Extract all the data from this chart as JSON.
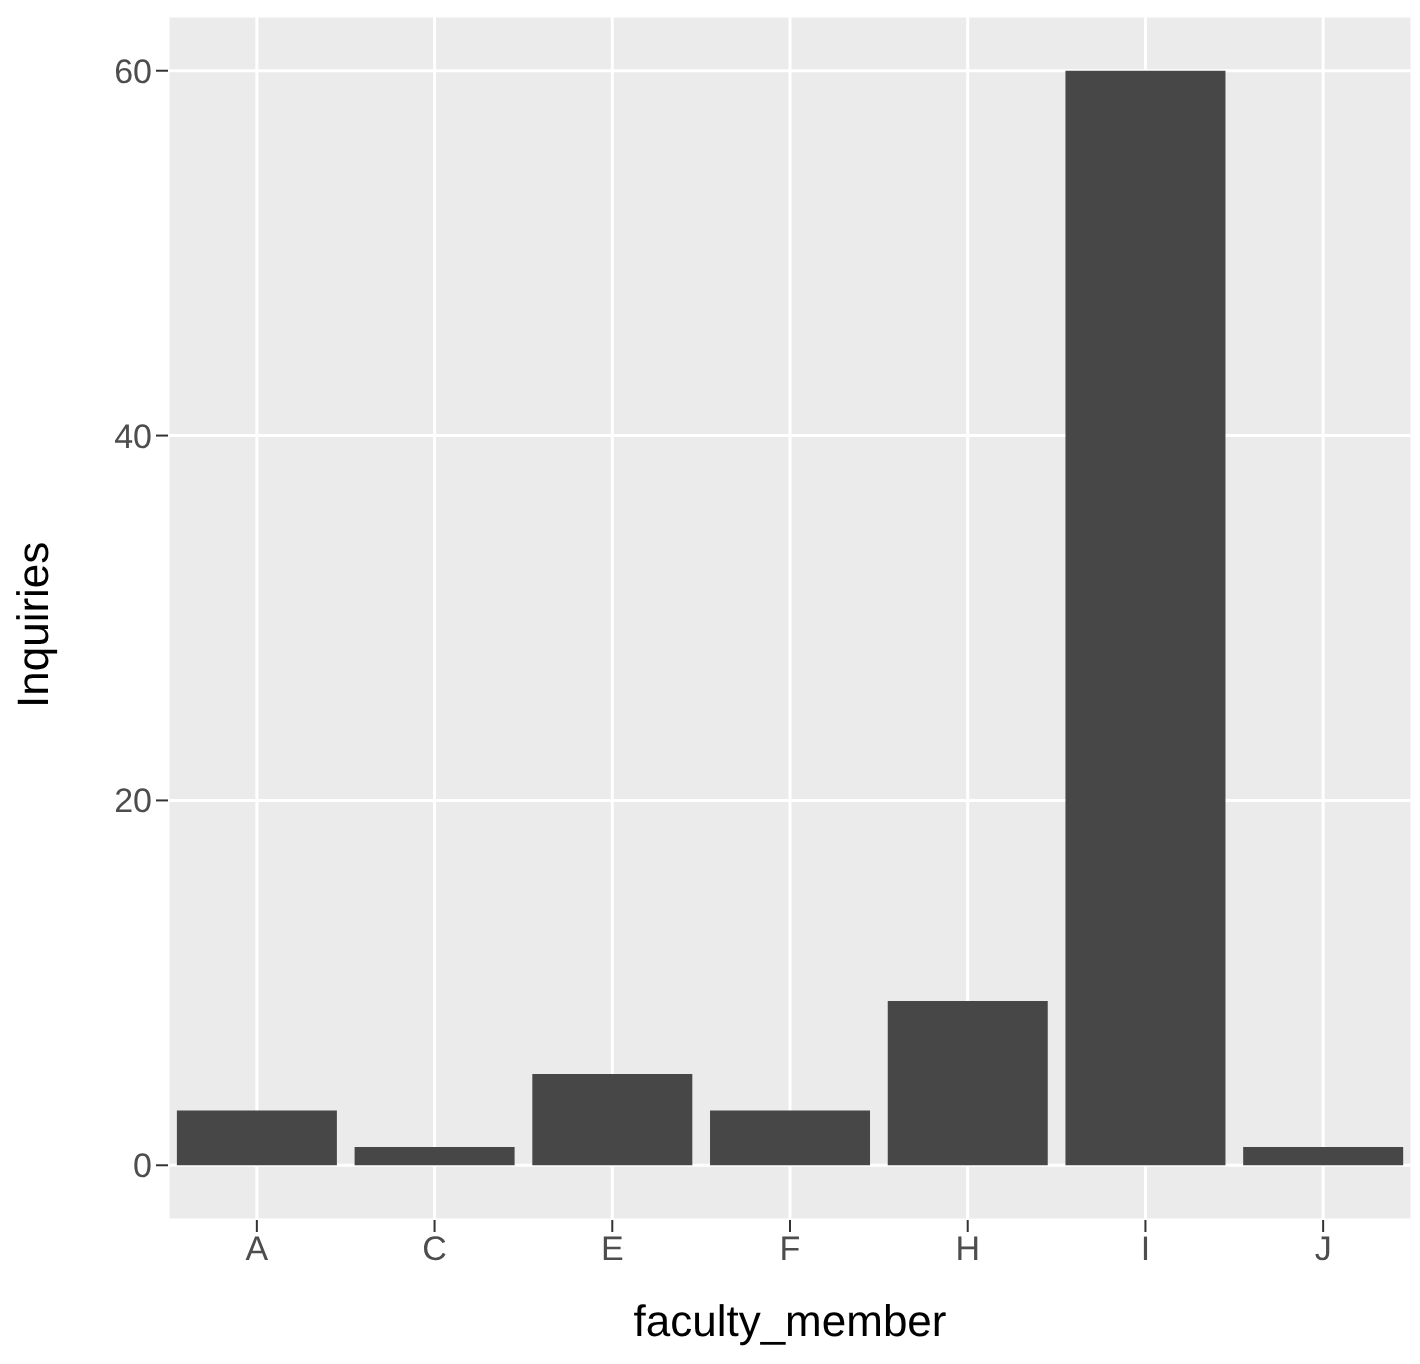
{
  "chart_data": {
    "type": "bar",
    "xlabel": "faculty_member",
    "ylabel": "Inquiries",
    "categories": [
      "A",
      "C",
      "E",
      "F",
      "H",
      "I",
      "J"
    ],
    "values": [
      3,
      1,
      5,
      3,
      9,
      60,
      1
    ],
    "color": "#474747",
    "ylim": [
      -3,
      63
    ],
    "yticks": [
      0,
      20,
      40,
      60
    ],
    "grid": true
  }
}
